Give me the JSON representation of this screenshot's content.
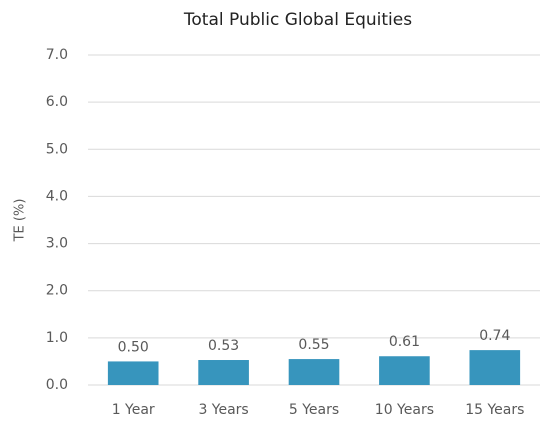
{
  "chart_data": {
    "type": "bar",
    "title": "Total Public Global Equities",
    "ylabel": "TE (%)",
    "categories": [
      "1 Year",
      "3 Years",
      "5 Years",
      "10 Years",
      "15 Years"
    ],
    "values": [
      0.5,
      0.53,
      0.55,
      0.61,
      0.74
    ],
    "value_labels": [
      "0.50",
      "0.53",
      "0.55",
      "0.61",
      "0.74"
    ],
    "color": "#3795bd",
    "ylim": [
      0,
      7
    ],
    "yticks": [
      {
        "value": 0,
        "label": "0.0"
      },
      {
        "value": 1,
        "label": "1.0"
      },
      {
        "value": 2,
        "label": "2.0"
      },
      {
        "value": 3,
        "label": "3.0"
      },
      {
        "value": 4,
        "label": "4.0"
      },
      {
        "value": 5,
        "label": "5.0"
      },
      {
        "value": 6,
        "label": "6.0"
      },
      {
        "value": 7,
        "label": "7.0"
      }
    ],
    "grid": true
  }
}
